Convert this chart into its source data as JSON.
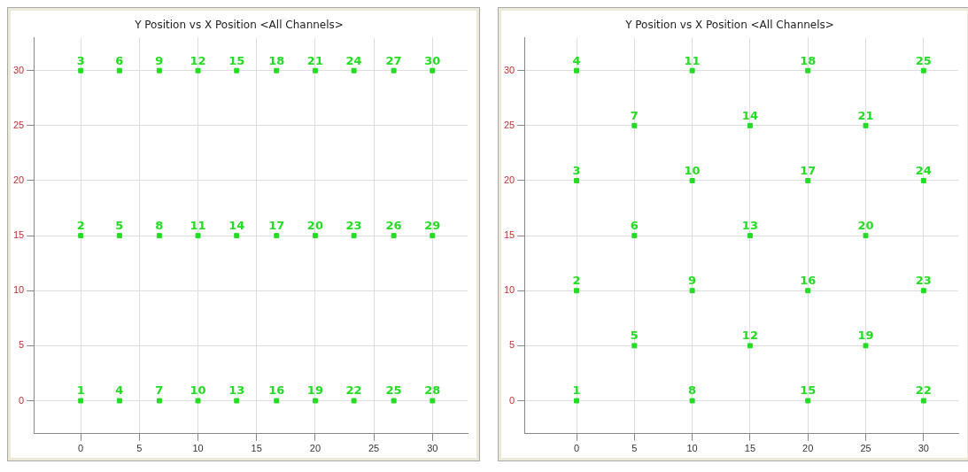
{
  "chart_data": [
    {
      "type": "scatter",
      "title": "Y Position vs X Position <All Channels>",
      "x": [
        0,
        0,
        0,
        3.3,
        3.3,
        3.3,
        6.7,
        6.7,
        6.7,
        10,
        10,
        10,
        13.3,
        13.3,
        13.3,
        16.7,
        16.7,
        16.7,
        20,
        20,
        20,
        23.3,
        23.3,
        23.3,
        26.7,
        26.7,
        26.7,
        30,
        30,
        30
      ],
      "values": [
        0,
        15,
        30,
        0,
        15,
        30,
        0,
        15,
        30,
        0,
        15,
        30,
        0,
        15,
        30,
        0,
        15,
        30,
        0,
        15,
        30,
        0,
        15,
        30,
        0,
        15,
        30,
        0,
        15,
        30
      ],
      "color": "#22dd22",
      "marker": "square",
      "xlim": [
        -4,
        33
      ],
      "ylim": [
        -3,
        33
      ],
      "xticks": [
        0,
        5,
        10,
        15,
        20,
        25,
        30
      ],
      "yticks": [
        0,
        5,
        10,
        15,
        20,
        25,
        30
      ],
      "grid": true,
      "annotations": [
        {
          "text": "1",
          "x": 0,
          "y": 0
        },
        {
          "text": "2",
          "x": 0,
          "y": 15
        },
        {
          "text": "3",
          "x": 0,
          "y": 30
        },
        {
          "text": "4",
          "x": 3.3,
          "y": 0
        },
        {
          "text": "5",
          "x": 3.3,
          "y": 15
        },
        {
          "text": "6",
          "x": 3.3,
          "y": 30
        },
        {
          "text": "7",
          "x": 6.7,
          "y": 0
        },
        {
          "text": "8",
          "x": 6.7,
          "y": 15
        },
        {
          "text": "9",
          "x": 6.7,
          "y": 30
        },
        {
          "text": "10",
          "x": 10,
          "y": 0
        },
        {
          "text": "11",
          "x": 10,
          "y": 15
        },
        {
          "text": "12",
          "x": 10,
          "y": 30
        },
        {
          "text": "13",
          "x": 13.3,
          "y": 0
        },
        {
          "text": "14",
          "x": 13.3,
          "y": 15
        },
        {
          "text": "15",
          "x": 13.3,
          "y": 30
        },
        {
          "text": "16",
          "x": 16.7,
          "y": 0
        },
        {
          "text": "17",
          "x": 16.7,
          "y": 15
        },
        {
          "text": "18",
          "x": 16.7,
          "y": 30
        },
        {
          "text": "19",
          "x": 20,
          "y": 0
        },
        {
          "text": "20",
          "x": 20,
          "y": 15
        },
        {
          "text": "21",
          "x": 20,
          "y": 30
        },
        {
          "text": "22",
          "x": 23.3,
          "y": 0
        },
        {
          "text": "23",
          "x": 23.3,
          "y": 15
        },
        {
          "text": "24",
          "x": 23.3,
          "y": 30
        },
        {
          "text": "25",
          "x": 26.7,
          "y": 0
        },
        {
          "text": "26",
          "x": 26.7,
          "y": 15
        },
        {
          "text": "27",
          "x": 26.7,
          "y": 30
        },
        {
          "text": "28",
          "x": 30,
          "y": 0
        },
        {
          "text": "29",
          "x": 30,
          "y": 15
        },
        {
          "text": "30",
          "x": 30,
          "y": 30
        }
      ]
    },
    {
      "type": "scatter",
      "title": "Y Position vs X Position <All Channels>",
      "x": [
        0,
        0,
        0,
        0,
        5,
        5,
        5,
        10,
        10,
        10,
        10,
        15,
        15,
        15,
        20,
        20,
        20,
        20,
        25,
        25,
        25,
        30,
        30,
        30,
        30
      ],
      "values": [
        0,
        10,
        20,
        30,
        5,
        15,
        25,
        0,
        10,
        20,
        30,
        5,
        15,
        25,
        0,
        10,
        20,
        30,
        5,
        15,
        25,
        0,
        10,
        20,
        30
      ],
      "color": "#22dd22",
      "marker": "square",
      "xlim": [
        -4.5,
        33
      ],
      "ylim": [
        -3,
        33
      ],
      "xticks": [
        0,
        5,
        10,
        15,
        20,
        25,
        30
      ],
      "yticks": [
        0,
        5,
        10,
        15,
        20,
        25,
        30
      ],
      "grid": true,
      "annotations": [
        {
          "text": "1",
          "x": 0,
          "y": 0
        },
        {
          "text": "2",
          "x": 0,
          "y": 10
        },
        {
          "text": "3",
          "x": 0,
          "y": 20
        },
        {
          "text": "4",
          "x": 0,
          "y": 30
        },
        {
          "text": "5",
          "x": 5,
          "y": 5
        },
        {
          "text": "6",
          "x": 5,
          "y": 15
        },
        {
          "text": "7",
          "x": 5,
          "y": 25
        },
        {
          "text": "8",
          "x": 10,
          "y": 0
        },
        {
          "text": "9",
          "x": 10,
          "y": 10
        },
        {
          "text": "10",
          "x": 10,
          "y": 20
        },
        {
          "text": "11",
          "x": 10,
          "y": 30
        },
        {
          "text": "12",
          "x": 15,
          "y": 5
        },
        {
          "text": "13",
          "x": 15,
          "y": 15
        },
        {
          "text": "14",
          "x": 15,
          "y": 25
        },
        {
          "text": "15",
          "x": 20,
          "y": 0
        },
        {
          "text": "16",
          "x": 20,
          "y": 10
        },
        {
          "text": "17",
          "x": 20,
          "y": 20
        },
        {
          "text": "18",
          "x": 20,
          "y": 30
        },
        {
          "text": "19",
          "x": 25,
          "y": 5
        },
        {
          "text": "20",
          "x": 25,
          "y": 15
        },
        {
          "text": "21",
          "x": 25,
          "y": 25
        },
        {
          "text": "22",
          "x": 30,
          "y": 0
        },
        {
          "text": "23",
          "x": 30,
          "y": 10
        },
        {
          "text": "24",
          "x": 30,
          "y": 20
        },
        {
          "text": "25",
          "x": 30,
          "y": 30
        }
      ]
    }
  ]
}
